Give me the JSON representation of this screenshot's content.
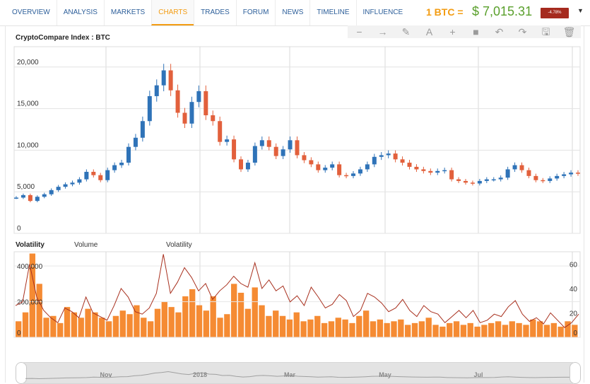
{
  "nav": {
    "tabs": [
      "OVERVIEW",
      "ANALYSIS",
      "MARKETS",
      "CHARTS",
      "TRADES",
      "FORUM",
      "NEWS",
      "TIMELINE",
      "INFLUENCE"
    ],
    "active_tab": "CHARTS"
  },
  "ticker": {
    "unit_label": "1 BTC =",
    "price": "$ 7,015.31",
    "change": "-4.78%",
    "change_color": "#a52a1e",
    "price_color": "#5aa02c"
  },
  "toolbar": {
    "icons": [
      "minus-icon",
      "arrow-right-icon",
      "pencil-icon",
      "text-icon",
      "plus-icon",
      "square-icon",
      "undo-icon",
      "redo-icon",
      "save-icon",
      "trash-icon"
    ],
    "glyphs": [
      "−",
      "→",
      "✎",
      "A",
      "+",
      "■",
      "↶",
      "↷",
      "🖫",
      "🗑"
    ]
  },
  "chart_data": [
    {
      "type": "candlestick",
      "title": "CryptoCompare Index : BTC",
      "y_ticks": [
        "0",
        "5,000",
        "10,000",
        "15,000",
        "20,000"
      ],
      "ylim": [
        0,
        22000
      ],
      "up_color": "#2f73b8",
      "down_color": "#e2603c",
      "close_series": [
        4300,
        4600,
        3900,
        4400,
        4700,
        5200,
        5600,
        5900,
        6100,
        6500,
        7400,
        7000,
        6400,
        7600,
        8200,
        8500,
        10400,
        11500,
        13500,
        16500,
        17800,
        19600,
        17200,
        14500,
        13200,
        15800,
        17100,
        14200,
        13500,
        11000,
        11300,
        8900,
        7700,
        8500,
        10500,
        11200,
        10400,
        9300,
        10100,
        11200,
        9400,
        8800,
        8300,
        7600,
        7900,
        8300,
        7000,
        6900,
        7200,
        7700,
        8300,
        9200,
        9400,
        9600,
        8900,
        8500,
        8000,
        7700,
        7500,
        7300,
        7500,
        7600,
        6500,
        6300,
        6100,
        6000,
        6300,
        6500,
        6500,
        6700,
        7700,
        8200,
        7600,
        6900,
        6400,
        6300,
        6600,
        6900,
        7100,
        7300,
        7200
      ]
    },
    {
      "type": "bar+line",
      "title": "Volatility",
      "legend": [
        "Volume",
        "Volatility"
      ],
      "left_ticks": [
        "0",
        "200,000",
        "400,000"
      ],
      "right_ticks": [
        "0",
        "20",
        "40",
        "60"
      ],
      "volume_color": "#f58b33",
      "volatility_color": "#a8301e",
      "volume": [
        90000,
        140000,
        470000,
        300000,
        110000,
        120000,
        80000,
        170000,
        140000,
        110000,
        160000,
        140000,
        110000,
        90000,
        120000,
        150000,
        130000,
        180000,
        110000,
        90000,
        160000,
        200000,
        170000,
        140000,
        230000,
        270000,
        180000,
        150000,
        230000,
        110000,
        130000,
        300000,
        250000,
        160000,
        280000,
        180000,
        120000,
        150000,
        120000,
        100000,
        140000,
        90000,
        100000,
        120000,
        80000,
        90000,
        110000,
        100000,
        80000,
        120000,
        150000,
        90000,
        100000,
        80000,
        90000,
        100000,
        70000,
        80000,
        90000,
        110000,
        70000,
        60000,
        80000,
        90000,
        70000,
        80000,
        60000,
        70000,
        80000,
        90000,
        70000,
        90000,
        80000,
        70000,
        100000,
        90000,
        70000,
        80000,
        60000,
        90000,
        70000
      ],
      "volatility": [
        26,
        29,
        60,
        33,
        22,
        16,
        12,
        24,
        21,
        16,
        33,
        20,
        17,
        14,
        26,
        40,
        33,
        21,
        19,
        24,
        36,
        68,
        36,
        45,
        57,
        49,
        38,
        44,
        31,
        38,
        43,
        50,
        44,
        41,
        61,
        40,
        47,
        38,
        42,
        29,
        34,
        26,
        41,
        33,
        24,
        27,
        35,
        30,
        17,
        22,
        36,
        33,
        28,
        21,
        24,
        31,
        22,
        17,
        26,
        21,
        19,
        12,
        17,
        22,
        16,
        22,
        12,
        14,
        19,
        17,
        25,
        30,
        19,
        13,
        16,
        11,
        20,
        14,
        8,
        12,
        19
      ]
    }
  ],
  "time_axis": [
    "Nov",
    "2018",
    "Mar",
    "May",
    "Jul"
  ]
}
